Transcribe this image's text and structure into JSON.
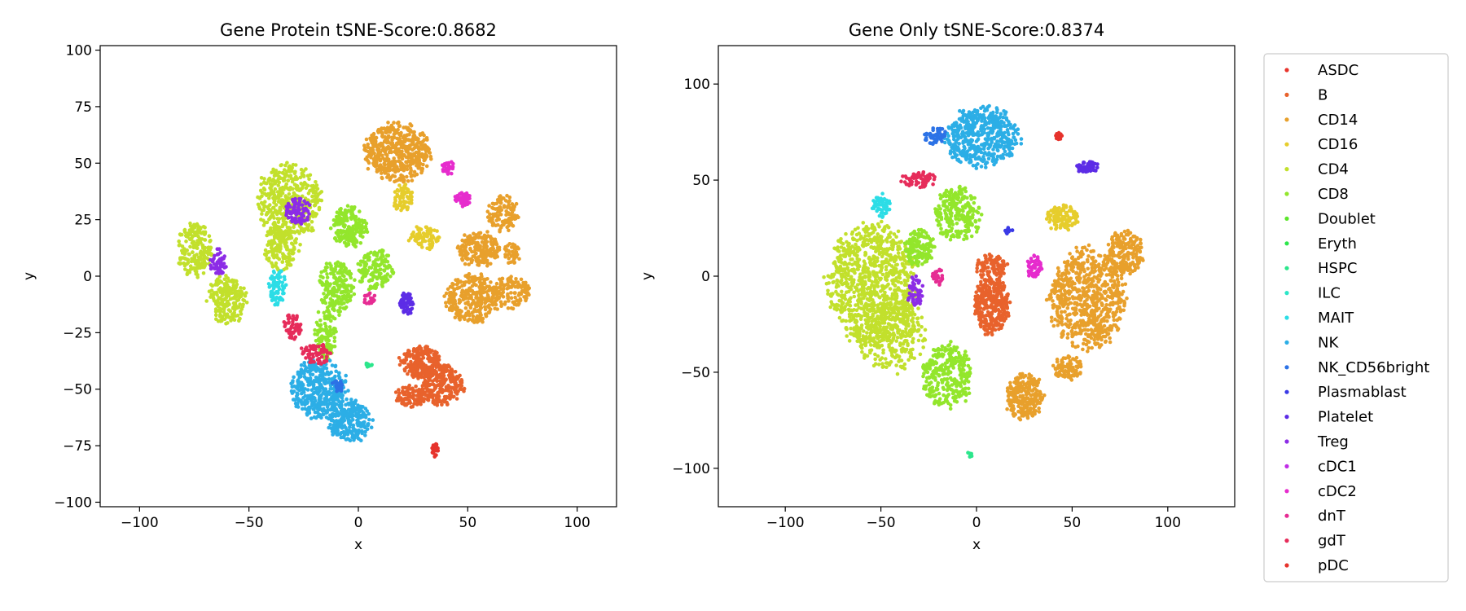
{
  "chart_data": [
    {
      "type": "scatter",
      "title": "Gene Protein tSNE-Score:0.8682",
      "xlabel": "x",
      "ylabel": "y",
      "xlim": [
        -118,
        118
      ],
      "ylim": [
        -102,
        102
      ],
      "xticks": [
        -100,
        -50,
        0,
        50,
        100
      ],
      "yticks": [
        -100,
        -75,
        -50,
        -25,
        0,
        25,
        50,
        75,
        100
      ],
      "grid": false,
      "clusters": [
        {
          "label": "CD14",
          "cx": 18,
          "cy": 55,
          "rx": 15,
          "ry": 13,
          "n": 500
        },
        {
          "label": "CD14",
          "cx": 52,
          "cy": -10,
          "rx": 12,
          "ry": 11,
          "n": 300
        },
        {
          "label": "CD14",
          "cx": 70,
          "cy": -7,
          "rx": 8,
          "ry": 7,
          "n": 120
        },
        {
          "label": "CD14",
          "cx": 55,
          "cy": 12,
          "rx": 10,
          "ry": 8,
          "n": 200
        },
        {
          "label": "CD14",
          "cx": 66,
          "cy": 28,
          "rx": 7,
          "ry": 8,
          "n": 120
        },
        {
          "label": "CD14",
          "cx": 70,
          "cy": 10,
          "rx": 4,
          "ry": 5,
          "n": 40
        },
        {
          "label": "CD16",
          "cx": 20,
          "cy": 35,
          "rx": 5,
          "ry": 6,
          "n": 70
        },
        {
          "label": "CD16",
          "cx": 30,
          "cy": 17,
          "rx": 7,
          "ry": 5,
          "n": 80
        },
        {
          "label": "CD4",
          "cx": -32,
          "cy": 33,
          "rx": 15,
          "ry": 17,
          "n": 450
        },
        {
          "label": "CD4",
          "cx": -75,
          "cy": 12,
          "rx": 8,
          "ry": 12,
          "n": 200
        },
        {
          "label": "CD4",
          "cx": -60,
          "cy": -10,
          "rx": 9,
          "ry": 11,
          "n": 200
        },
        {
          "label": "CD4",
          "cx": -35,
          "cy": 12,
          "rx": 8,
          "ry": 10,
          "n": 150
        },
        {
          "label": "CD8",
          "cx": -4,
          "cy": 22,
          "rx": 8,
          "ry": 9,
          "n": 200
        },
        {
          "label": "CD8",
          "cx": 8,
          "cy": 3,
          "rx": 8,
          "ry": 9,
          "n": 150
        },
        {
          "label": "CD8",
          "cx": -10,
          "cy": -5,
          "rx": 8,
          "ry": 12,
          "n": 200
        },
        {
          "label": "CD8",
          "cx": -15,
          "cy": -25,
          "rx": 5,
          "ry": 12,
          "n": 100
        },
        {
          "label": "NK",
          "cx": -18,
          "cy": -50,
          "rx": 13,
          "ry": 13,
          "n": 400
        },
        {
          "label": "NK",
          "cx": -4,
          "cy": -64,
          "rx": 10,
          "ry": 9,
          "n": 250
        },
        {
          "label": "B",
          "cx": 28,
          "cy": -38,
          "rx": 9,
          "ry": 7,
          "n": 200
        },
        {
          "label": "B",
          "cx": 38,
          "cy": -48,
          "rx": 10,
          "ry": 9,
          "n": 250
        },
        {
          "label": "B",
          "cx": 24,
          "cy": -53,
          "rx": 7,
          "ry": 5,
          "n": 100
        },
        {
          "label": "Treg",
          "cx": -28,
          "cy": 29,
          "rx": 6,
          "ry": 6,
          "n": 80
        },
        {
          "label": "Treg",
          "cx": -64,
          "cy": 6,
          "rx": 4,
          "ry": 6,
          "n": 50
        },
        {
          "label": "MAIT",
          "cx": -37,
          "cy": -5,
          "rx": 4,
          "ry": 8,
          "n": 70
        },
        {
          "label": "gdT",
          "cx": -30,
          "cy": -22,
          "rx": 4,
          "ry": 6,
          "n": 50
        },
        {
          "label": "gdT",
          "cx": -20,
          "cy": -35,
          "rx": 7,
          "ry": 5,
          "n": 70
        },
        {
          "label": "Platelet",
          "cx": 22,
          "cy": -12,
          "rx": 3,
          "ry": 5,
          "n": 60
        },
        {
          "label": "cDC2",
          "cx": 48,
          "cy": 34,
          "rx": 4,
          "ry": 3,
          "n": 50
        },
        {
          "label": "cDC2",
          "cx": 41,
          "cy": 48,
          "rx": 3,
          "ry": 3,
          "n": 30
        },
        {
          "label": "pDC",
          "cx": 35,
          "cy": -77,
          "rx": 1.5,
          "ry": 3,
          "n": 30
        },
        {
          "label": "NK_CD56bright",
          "cx": -9,
          "cy": -48,
          "rx": 3,
          "ry": 3,
          "n": 25
        },
        {
          "label": "HSPC",
          "cx": 5,
          "cy": -39,
          "rx": 1.5,
          "ry": 1.5,
          "n": 10
        },
        {
          "label": "dnT",
          "cx": 5,
          "cy": -10,
          "rx": 3,
          "ry": 3,
          "n": 20
        }
      ]
    },
    {
      "type": "scatter",
      "title": "Gene Only tSNE-Score:0.8374",
      "xlabel": "x",
      "ylabel": "y",
      "xlim": [
        -135,
        135
      ],
      "ylim": [
        -120,
        120
      ],
      "xticks": [
        -100,
        -50,
        0,
        50,
        100
      ],
      "yticks": [
        -100,
        -50,
        0,
        50,
        100
      ],
      "grid": false,
      "clusters": [
        {
          "label": "NK",
          "cx": 3,
          "cy": 72,
          "rx": 19,
          "ry": 16,
          "n": 500
        },
        {
          "label": "NK_CD56bright",
          "cx": -22,
          "cy": 73,
          "rx": 6,
          "ry": 5,
          "n": 50
        },
        {
          "label": "CD4",
          "cx": -55,
          "cy": -5,
          "rx": 23,
          "ry": 32,
          "n": 900
        },
        {
          "label": "CD4",
          "cx": -45,
          "cy": -30,
          "rx": 18,
          "ry": 20,
          "n": 300
        },
        {
          "label": "CD8",
          "cx": -15,
          "cy": -52,
          "rx": 13,
          "ry": 17,
          "n": 300
        },
        {
          "label": "CD8",
          "cx": -10,
          "cy": 32,
          "rx": 12,
          "ry": 14,
          "n": 250
        },
        {
          "label": "CD8",
          "cx": -30,
          "cy": 15,
          "rx": 8,
          "ry": 10,
          "n": 150
        },
        {
          "label": "B",
          "cx": 8,
          "cy": -15,
          "rx": 9,
          "ry": 15,
          "n": 350
        },
        {
          "label": "B",
          "cx": 8,
          "cy": 5,
          "rx": 8,
          "ry": 7,
          "n": 100
        },
        {
          "label": "CD14",
          "cx": 58,
          "cy": -12,
          "rx": 20,
          "ry": 26,
          "n": 700
        },
        {
          "label": "CD14",
          "cx": 78,
          "cy": 12,
          "rx": 10,
          "ry": 12,
          "n": 200
        },
        {
          "label": "CD14",
          "cx": 25,
          "cy": -63,
          "rx": 10,
          "ry": 12,
          "n": 250
        },
        {
          "label": "CD14",
          "cx": 48,
          "cy": -48,
          "rx": 8,
          "ry": 6,
          "n": 100
        },
        {
          "label": "CD16",
          "cx": 45,
          "cy": 30,
          "rx": 8,
          "ry": 7,
          "n": 120
        },
        {
          "label": "Platelet",
          "cx": 58,
          "cy": 57,
          "rx": 6,
          "ry": 3,
          "n": 60
        },
        {
          "label": "pDC",
          "cx": 43,
          "cy": 73,
          "rx": 2,
          "ry": 2,
          "n": 25
        },
        {
          "label": "cDC2",
          "cx": 30,
          "cy": 5,
          "rx": 4,
          "ry": 6,
          "n": 60
        },
        {
          "label": "gdT",
          "cx": -30,
          "cy": 50,
          "rx": 10,
          "ry": 4,
          "n": 70
        },
        {
          "label": "MAIT",
          "cx": -50,
          "cy": 37,
          "rx": 5,
          "ry": 6,
          "n": 60
        },
        {
          "label": "Treg",
          "cx": -32,
          "cy": -8,
          "rx": 4,
          "ry": 8,
          "n": 60
        },
        {
          "label": "dnT",
          "cx": -20,
          "cy": 0,
          "rx": 3,
          "ry": 5,
          "n": 25
        },
        {
          "label": "HSPC",
          "cx": -4,
          "cy": -93,
          "rx": 1.5,
          "ry": 1.5,
          "n": 8
        },
        {
          "label": "Plasmablast",
          "cx": 17,
          "cy": 24,
          "rx": 2,
          "ry": 2,
          "n": 10
        }
      ]
    }
  ],
  "legend": {
    "placement": "outside-right",
    "entries": [
      {
        "label": "ASDC",
        "color": "#e8342c"
      },
      {
        "label": "B",
        "color": "#e8622c"
      },
      {
        "label": "CD14",
        "color": "#e8a02c"
      },
      {
        "label": "CD16",
        "color": "#e6cd2c"
      },
      {
        "label": "CD4",
        "color": "#c2e02c"
      },
      {
        "label": "CD8",
        "color": "#93e62c"
      },
      {
        "label": "Doublet",
        "color": "#5ce62c"
      },
      {
        "label": "Eryth",
        "color": "#2ce64b"
      },
      {
        "label": "HSPC",
        "color": "#2ce68c"
      },
      {
        "label": "ILC",
        "color": "#2ce6c8"
      },
      {
        "label": "MAIT",
        "color": "#2cdde6"
      },
      {
        "label": "NK",
        "color": "#2caee6"
      },
      {
        "label": "NK_CD56bright",
        "color": "#2c72e6"
      },
      {
        "label": "Plasmablast",
        "color": "#3a3ae6"
      },
      {
        "label": "Platelet",
        "color": "#5c2ce6"
      },
      {
        "label": "Treg",
        "color": "#8c2ce6"
      },
      {
        "label": "cDC1",
        "color": "#c02ce6"
      },
      {
        "label": "cDC2",
        "color": "#e62ccd"
      },
      {
        "label": "dnT",
        "color": "#e62c93"
      },
      {
        "label": "gdT",
        "color": "#e62c5a"
      },
      {
        "label": "pDC",
        "color": "#e6332c"
      }
    ]
  }
}
